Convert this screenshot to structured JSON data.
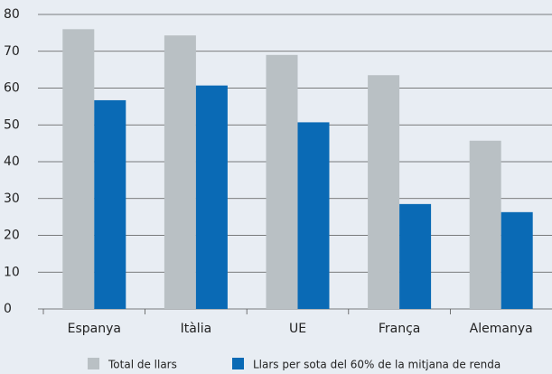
{
  "chart_data": {
    "type": "bar",
    "categories": [
      "Espanya",
      "Itàlia",
      "UE",
      "França",
      "Alemanya"
    ],
    "series": [
      {
        "name": "Total de llars",
        "color": "#b9c0c4",
        "values": [
          76,
          74.3,
          69,
          63.5,
          45.7
        ]
      },
      {
        "name": "Llars per sota del 60% de la mitjana de renda",
        "color": "#0a6ab5",
        "values": [
          56.7,
          60.7,
          50.7,
          28.5,
          26.3
        ]
      }
    ],
    "ylim": [
      0,
      80
    ],
    "yticks": [
      0,
      10,
      20,
      30,
      40,
      50,
      60,
      70,
      80
    ],
    "grid": true,
    "legend": "bottom"
  }
}
